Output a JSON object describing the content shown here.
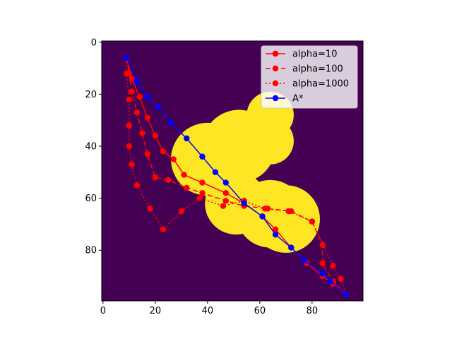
{
  "chart_data": {
    "type": "line",
    "title": "",
    "xlabel": "",
    "ylabel": "",
    "xlim": [
      -0.5,
      99.5
    ],
    "ylim": [
      99.5,
      -0.5
    ],
    "y_inverted": true,
    "xticks": [
      0,
      20,
      40,
      60,
      80
    ],
    "yticks": [
      0,
      20,
      40,
      60,
      80
    ],
    "grid": false,
    "legend_position": "upper right",
    "background_image": {
      "description_colors": {
        "free": "#440154",
        "obstacle": "#fde725"
      },
      "obstacles": [
        {
          "shape": "circle",
          "cx": 40,
          "cy": 45,
          "r": 14
        },
        {
          "shape": "circle",
          "cx": 52,
          "cy": 40,
          "r": 14
        },
        {
          "shape": "circle",
          "cx": 51,
          "cy": 62,
          "r": 12
        },
        {
          "shape": "circle",
          "cx": 64,
          "cy": 28,
          "r": 9
        },
        {
          "shape": "circle",
          "cx": 64,
          "cy": 38,
          "r": 9
        },
        {
          "shape": "circle",
          "cx": 70,
          "cy": 68,
          "r": 13
        },
        {
          "shape": "circle",
          "cx": 64,
          "cy": 66,
          "r": 13
        }
      ]
    },
    "series": [
      {
        "name": "alpha=10",
        "color": "#ff0000",
        "linestyle": "solid",
        "x": [
          9,
          11,
          14,
          17,
          20,
          23,
          27,
          31,
          38,
          47,
          54,
          61,
          66,
          72,
          78,
          84,
          88,
          93
        ],
        "y": [
          6,
          14,
          21,
          29,
          36,
          42,
          45,
          51,
          54,
          58,
          62,
          67,
          72,
          79,
          85,
          90,
          93,
          97
        ]
      },
      {
        "name": "alpha=100",
        "color": "#ff0000",
        "linestyle": "dashed",
        "x": [
          9,
          10,
          11,
          13,
          15,
          17,
          20,
          25,
          32,
          38,
          47,
          54,
          63,
          72,
          80,
          84,
          84,
          88,
          93
        ],
        "y": [
          6,
          12,
          19,
          27,
          35,
          43,
          52,
          53,
          56,
          58,
          61,
          63,
          64,
          65,
          69,
          78,
          85,
          92,
          97
        ]
      },
      {
        "name": "alpha=1000",
        "color": "#ff0000",
        "linestyle": "dotted",
        "x": [
          9,
          9,
          10,
          10,
          10,
          11,
          13,
          18,
          23,
          30,
          37,
          46,
          54,
          62,
          71,
          80,
          88,
          91,
          93
        ],
        "y": [
          6,
          12,
          22,
          32,
          40,
          47,
          55,
          64,
          72,
          65,
          60,
          63,
          61,
          64,
          65,
          69,
          86,
          91,
          97
        ]
      },
      {
        "name": "A*",
        "color": "#0000ff",
        "linestyle": "solid",
        "x": [
          9,
          13,
          17,
          21,
          26,
          32,
          38,
          43,
          47,
          54,
          61,
          66,
          72,
          77,
          84,
          87,
          93
        ],
        "y": [
          6,
          15,
          21,
          25,
          31,
          37,
          44,
          50,
          54,
          62,
          67,
          74,
          79,
          84,
          89,
          92,
          97
        ]
      }
    ]
  }
}
